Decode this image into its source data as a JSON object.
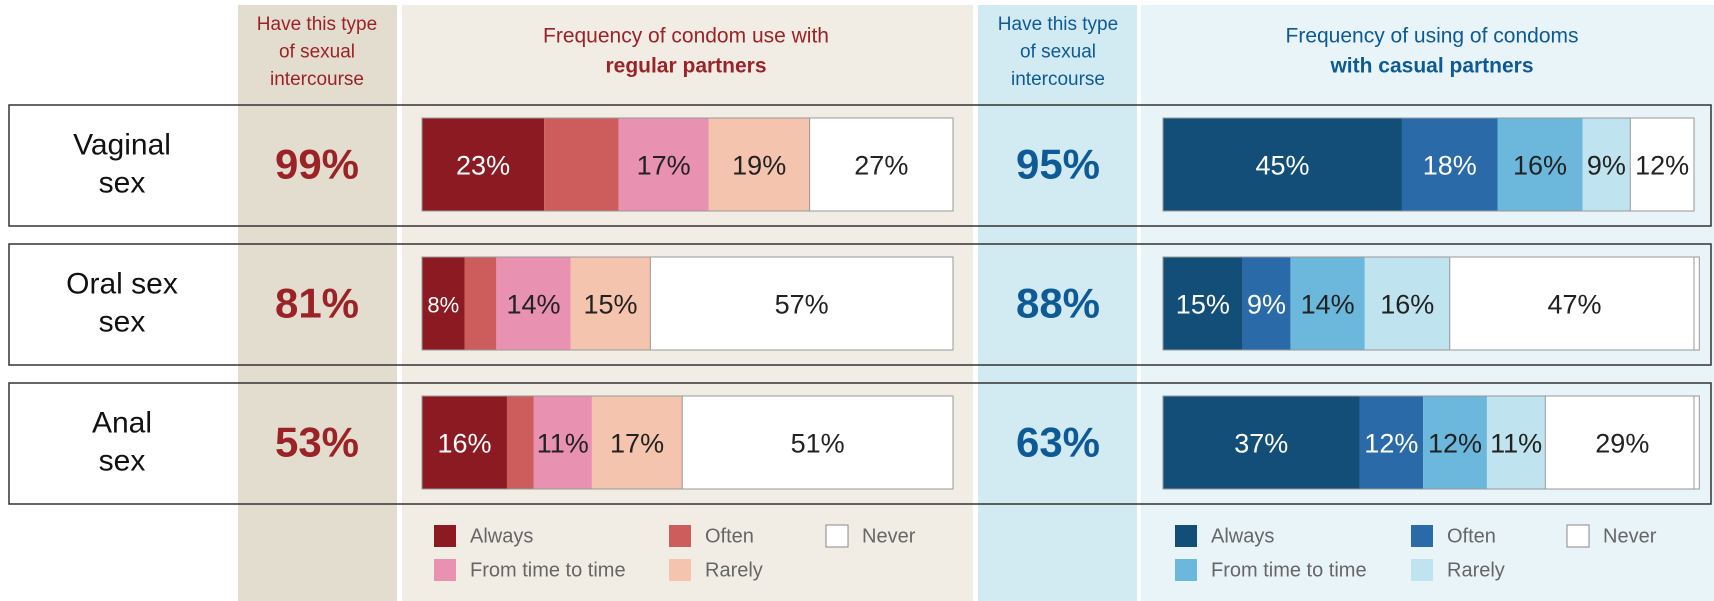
{
  "chart_data": {
    "type": "bar",
    "stacked": true,
    "orientation": "horizontal",
    "xlim": [
      0,
      100
    ],
    "categories": [
      [
        "Vaginal",
        "sex"
      ],
      [
        "Oral sex",
        "sex"
      ],
      [
        "Anal",
        "sex"
      ]
    ],
    "groups": [
      {
        "prevalence_title": [
          "Have this type",
          "of sexual",
          "intercourse"
        ],
        "title": [
          "Frequency of condom use with",
          "regular partners"
        ],
        "accent": "#9b2226",
        "prevalence": [
          99,
          81,
          53
        ],
        "prevalence_labels": [
          "99%",
          "81%",
          "53%"
        ],
        "series": [
          {
            "name": "Always",
            "color": "#8b1a22",
            "values": [
              23,
              8,
              16
            ],
            "value_labels": [
              "23%",
              "8%",
              "16%"
            ]
          },
          {
            "name": "Often",
            "color": "#cd5c5c",
            "values": [
              14,
              6,
              5
            ],
            "value_labels": [
              null,
              null,
              null
            ]
          },
          {
            "name": "From time to time",
            "color": "#e891b0",
            "values": [
              17,
              14,
              11
            ],
            "value_labels": [
              "17%",
              "14%",
              "11%"
            ]
          },
          {
            "name": "Rarely",
            "color": "#f5c4ae",
            "values": [
              19,
              15,
              17
            ],
            "value_labels": [
              "19%",
              "15%",
              "17%"
            ]
          },
          {
            "name": "Never",
            "color": "#ffffff",
            "values": [
              27,
              57,
              51
            ],
            "value_labels": [
              "27%",
              "57%",
              "51%"
            ]
          }
        ]
      },
      {
        "prevalence_title": [
          "Have this type",
          "of sexual",
          "intercourse"
        ],
        "title": [
          "Frequency of using of condoms",
          "with casual partners"
        ],
        "accent": "#0d5a96",
        "prevalence": [
          95,
          88,
          63
        ],
        "prevalence_labels": [
          "95%",
          "88%",
          "63%"
        ],
        "series": [
          {
            "name": "Always",
            "color": "#124e78",
            "values": [
              45,
              15,
              37
            ],
            "value_labels": [
              "45%",
              "15%",
              "37%"
            ]
          },
          {
            "name": "Often",
            "color": "#2a6aa8",
            "values": [
              18,
              9,
              12
            ],
            "value_labels": [
              "18%",
              "9%",
              "12%"
            ]
          },
          {
            "name": "From time to time",
            "color": "#6bb8dc",
            "values": [
              16,
              14,
              12
            ],
            "value_labels": [
              "16%",
              "14%",
              "12%"
            ]
          },
          {
            "name": "Rarely",
            "color": "#bfe3ef",
            "values": [
              9,
              16,
              11
            ],
            "value_labels": [
              "9%",
              "16%",
              "11%"
            ]
          },
          {
            "name": "Never",
            "color": "#ffffff",
            "values": [
              12,
              47,
              29
            ],
            "value_labels": [
              "12%",
              "47%",
              "29%"
            ]
          }
        ]
      }
    ]
  }
}
